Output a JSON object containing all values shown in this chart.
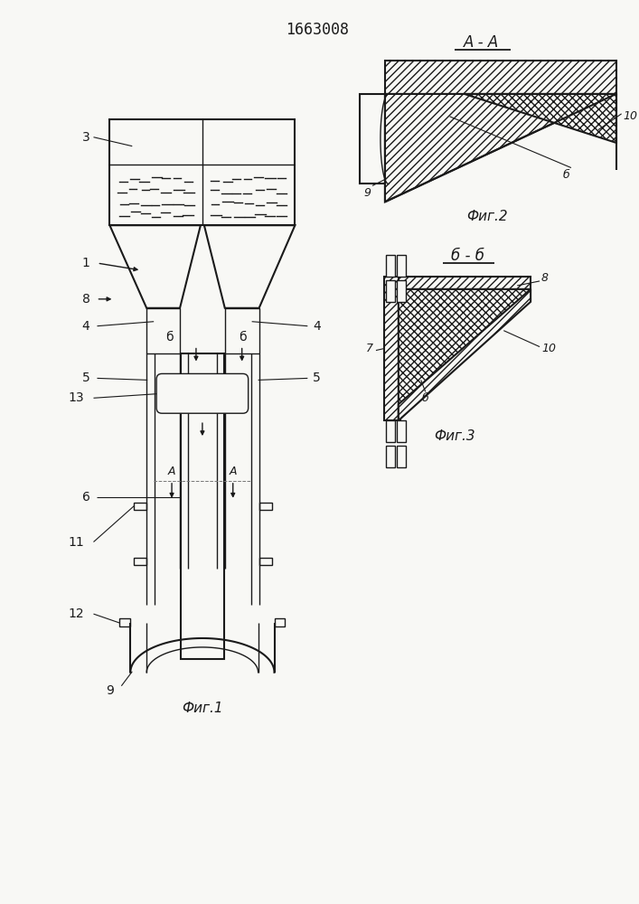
{
  "title": "1663008",
  "bg_color": "#f8f8f5",
  "line_color": "#1a1a1a",
  "fig1_label": "Фиг.1",
  "fig2_label": "Фиг.2",
  "fig3_label": "Фиг.3",
  "section_aa": "А - А",
  "section_bb": "б - б"
}
